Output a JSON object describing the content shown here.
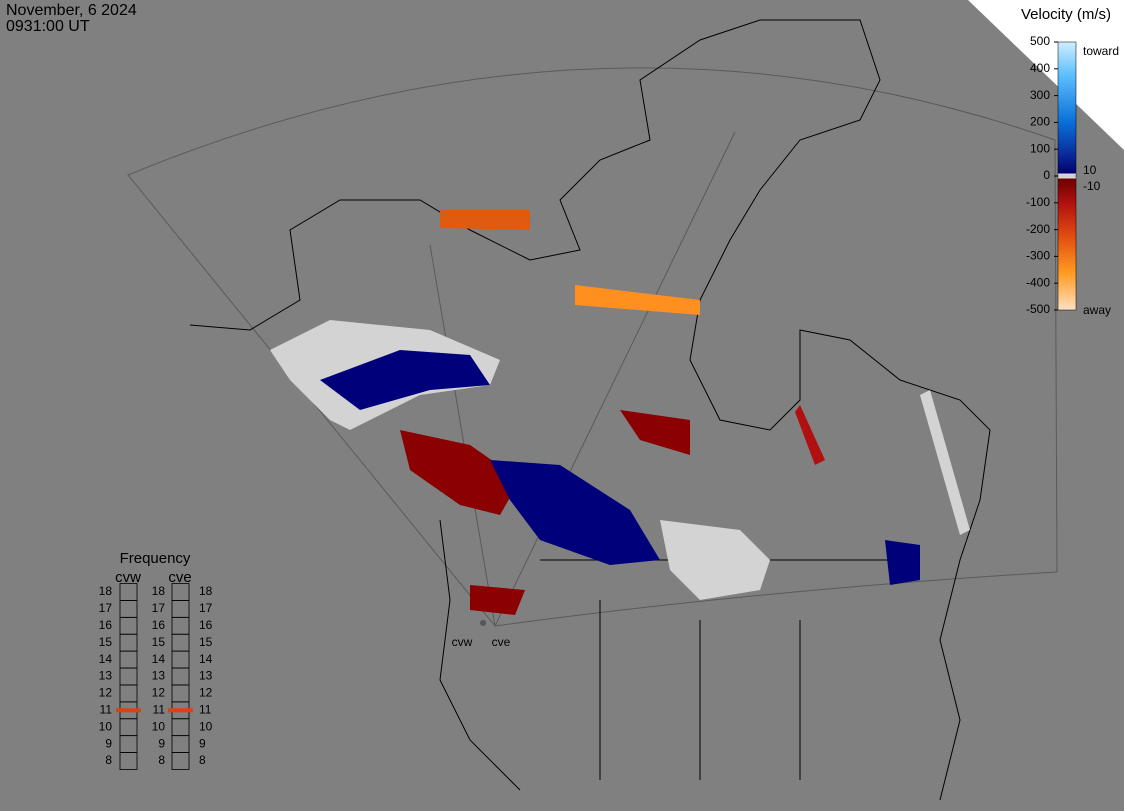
{
  "header": {
    "date": "November, 6 2024",
    "time": "0931:00 UT"
  },
  "colorbar": {
    "title": "Velocity (m/s)",
    "ticks": [
      500,
      400,
      300,
      200,
      100,
      0,
      -100,
      -200,
      -300,
      -400,
      -500
    ],
    "inner_ticks": [
      10,
      -10
    ],
    "top_label": "toward",
    "bottom_label": "away"
  },
  "frequency": {
    "title": "Frequency",
    "ticks": [
      18,
      17,
      16,
      15,
      14,
      13,
      12,
      11,
      10,
      9,
      8
    ],
    "radars": [
      {
        "name": "cvw",
        "value": 11
      },
      {
        "name": "cve",
        "value": 11
      }
    ]
  },
  "map": {
    "radar_labels": [
      "cvw",
      "cve"
    ]
  }
}
